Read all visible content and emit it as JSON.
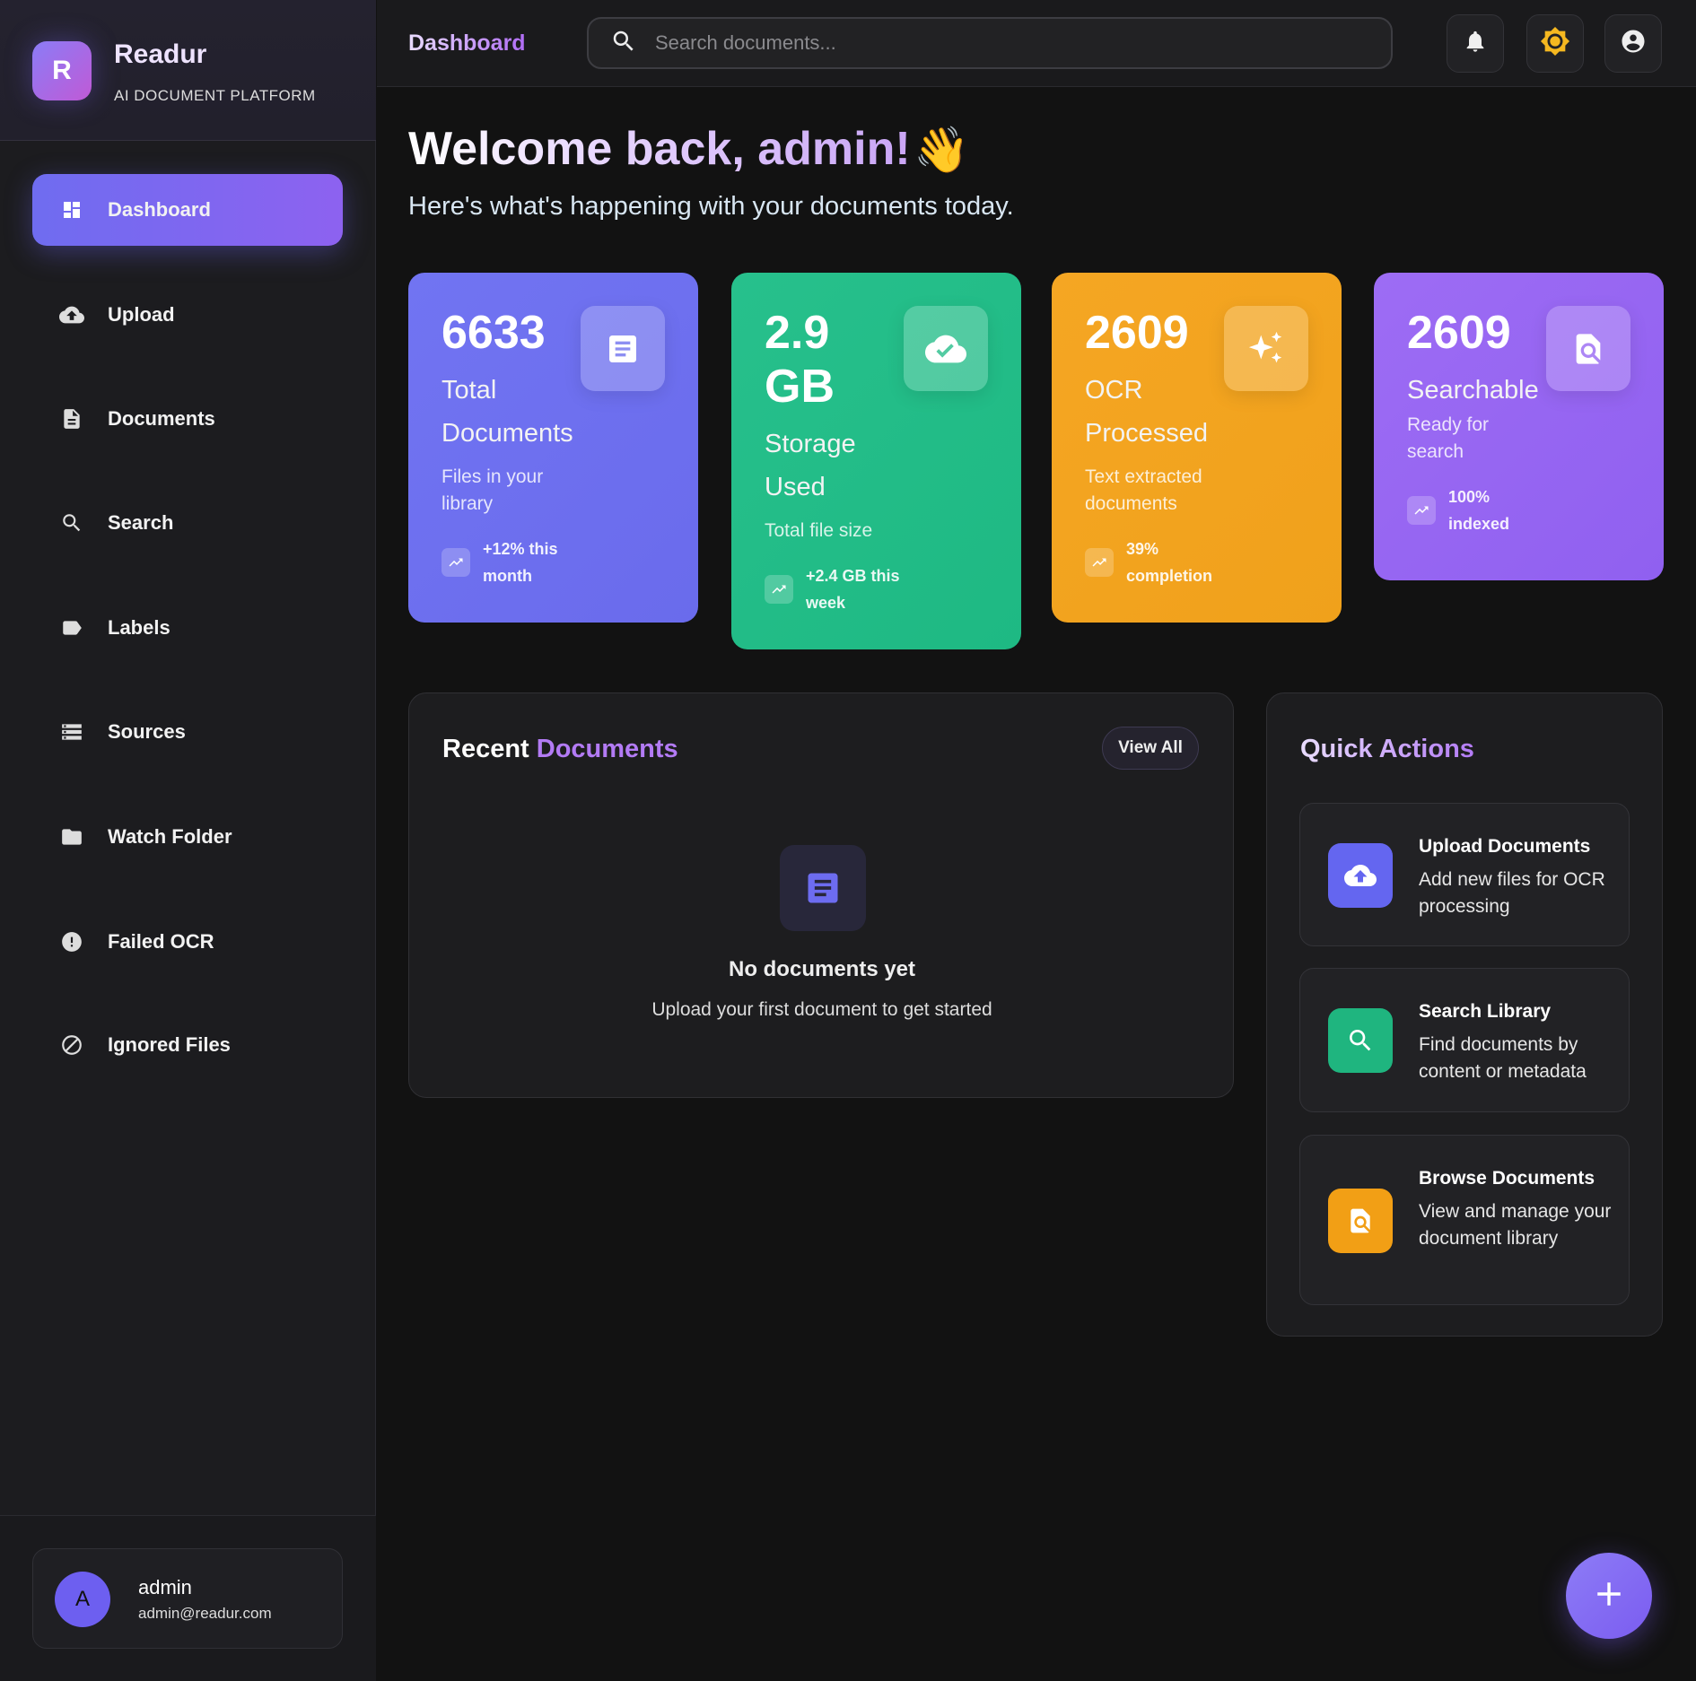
{
  "brand": {
    "initial": "R",
    "name": "Readur",
    "tagline": "AI DOCUMENT PLATFORM"
  },
  "sidebar": {
    "items": [
      {
        "label": "Dashboard",
        "icon": "dashboard-icon",
        "active": true
      },
      {
        "label": "Upload",
        "icon": "cloud-upload-icon"
      },
      {
        "label": "Documents",
        "icon": "document-icon"
      },
      {
        "label": "Search",
        "icon": "search-icon"
      },
      {
        "label": "Labels",
        "icon": "label-icon"
      },
      {
        "label": "Sources",
        "icon": "storage-icon"
      },
      {
        "label": "Watch Folder",
        "icon": "folder-icon"
      },
      {
        "label": "Failed OCR",
        "icon": "error-icon"
      },
      {
        "label": "Ignored Files",
        "icon": "block-icon"
      }
    ]
  },
  "user": {
    "initial": "A",
    "name": "admin",
    "email": "admin@readur.com"
  },
  "header": {
    "title": "Dashboard",
    "search_placeholder": "Search documents..."
  },
  "welcome": {
    "title": "Welcome back, admin!",
    "emoji": "👋",
    "subtitle": "Here's what's happening with your documents today."
  },
  "stats": [
    {
      "value": "6633",
      "label": "Total Documents",
      "desc": "Files in your library",
      "trend": "+12% this month",
      "color": "#6b6cf0",
      "icon": "document-icon"
    },
    {
      "value": "2.9 GB",
      "label": "Storage Used",
      "desc": "Total file size",
      "trend": "+2.4 GB this week",
      "color": "#22bd86",
      "icon": "cloud-done-icon"
    },
    {
      "value": "2609",
      "label": "OCR Processed",
      "desc": "Text extracted documents",
      "trend": "39% completion",
      "color": "#f3a51f",
      "icon": "sparkle-icon"
    },
    {
      "value": "2609",
      "label": "Searchable",
      "desc": "Ready for search",
      "trend": "100% indexed",
      "color": "#9462f2",
      "icon": "find-in-page-icon"
    }
  ],
  "recent": {
    "title_a": "Recent",
    "title_b": "Documents",
    "view_all": "View All",
    "empty_title": "No documents yet",
    "empty_sub": "Upload your first document to get started"
  },
  "quick": {
    "title": "Quick Actions",
    "items": [
      {
        "title": "Upload Documents",
        "desc": "Add new files for OCR processing",
        "color": "#6466f0"
      },
      {
        "title": "Search Library",
        "desc": "Find documents by content or metadata",
        "color": "#1fb57f"
      },
      {
        "title": "Browse Documents",
        "desc": "View and manage your document library",
        "color": "#f29f15"
      }
    ]
  }
}
